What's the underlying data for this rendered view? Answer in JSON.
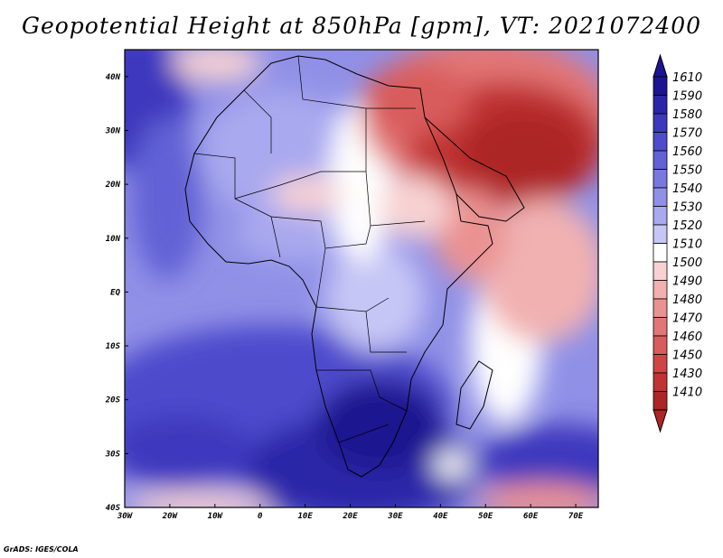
{
  "title": "Geopotential Height at 850hPa [gpm], VT: 2021072400",
  "credit": "GrADS: IGES/COLA",
  "map": {
    "lon_range": [
      -30,
      75
    ],
    "lat_range": [
      -40,
      45
    ],
    "lon_ticks": [
      {
        "value": -30,
        "label": "30W"
      },
      {
        "value": -20,
        "label": "20W"
      },
      {
        "value": -10,
        "label": "10W"
      },
      {
        "value": 0,
        "label": "0"
      },
      {
        "value": 10,
        "label": "10E"
      },
      {
        "value": 20,
        "label": "20E"
      },
      {
        "value": 30,
        "label": "30E"
      },
      {
        "value": 40,
        "label": "40E"
      },
      {
        "value": 50,
        "label": "50E"
      },
      {
        "value": 60,
        "label": "60E"
      },
      {
        "value": 70,
        "label": "70E"
      }
    ],
    "lat_ticks": [
      {
        "value": 40,
        "label": "40N"
      },
      {
        "value": 30,
        "label": "30N"
      },
      {
        "value": 20,
        "label": "20N"
      },
      {
        "value": 10,
        "label": "10N"
      },
      {
        "value": 0,
        "label": "EQ"
      },
      {
        "value": -10,
        "label": "10S"
      },
      {
        "value": -20,
        "label": "20S"
      },
      {
        "value": -30,
        "label": "30S"
      },
      {
        "value": -40,
        "label": "40S"
      }
    ]
  },
  "colorbar": {
    "levels": [
      {
        "label": "1610",
        "color": "#1c1490"
      },
      {
        "label": "1590",
        "color": "#2b25a8"
      },
      {
        "label": "1580",
        "color": "#3c39bd"
      },
      {
        "label": "1570",
        "color": "#4e4ccc"
      },
      {
        "label": "1560",
        "color": "#6262d6"
      },
      {
        "label": "1550",
        "color": "#7878df"
      },
      {
        "label": "1540",
        "color": "#9090e7"
      },
      {
        "label": "1530",
        "color": "#a9a9ef"
      },
      {
        "label": "1520",
        "color": "#c6c6f6"
      },
      {
        "label": "1510",
        "color": "#ffffff"
      },
      {
        "label": "1500",
        "color": "#f8d2d2"
      },
      {
        "label": "1490",
        "color": "#f1b1b1"
      },
      {
        "label": "1480",
        "color": "#ea9292"
      },
      {
        "label": "1470",
        "color": "#e27676"
      },
      {
        "label": "1460",
        "color": "#d95c5c"
      },
      {
        "label": "1450",
        "color": "#cf4545"
      },
      {
        "label": "1430",
        "color": "#c13333"
      },
      {
        "label": "1410",
        "color": "#ad2525"
      }
    ]
  }
}
